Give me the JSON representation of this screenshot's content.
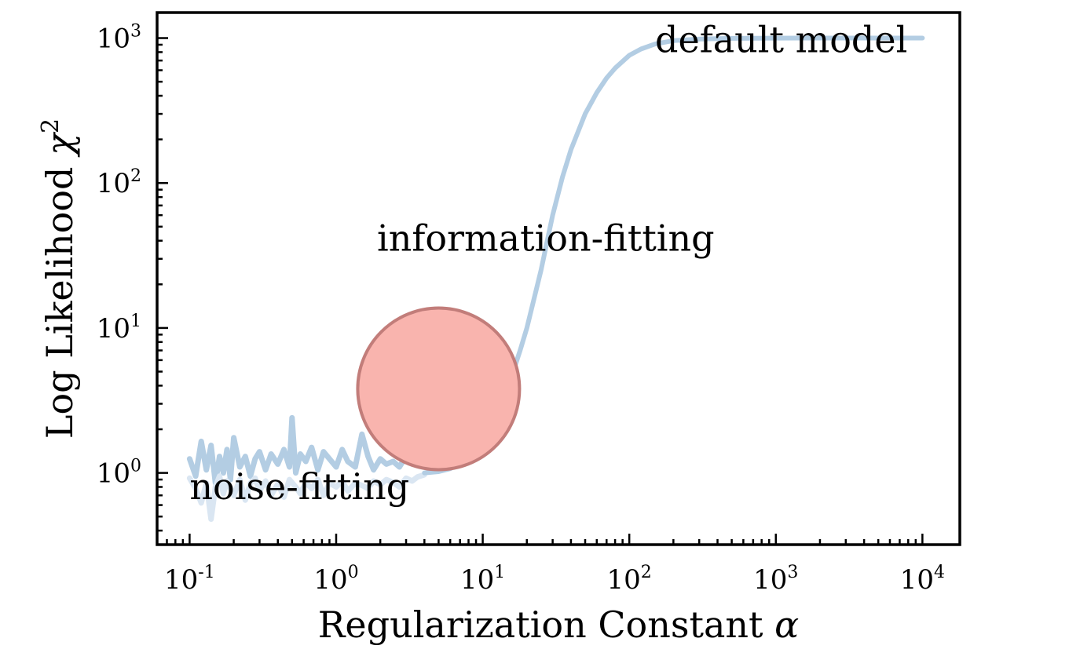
{
  "chart_data": {
    "type": "line",
    "title": "",
    "xlabel": "Regularization Constant",
    "xlabel_symbol": "α",
    "ylabel": "Log Likelihood",
    "ylabel_symbol": "χ",
    "ylabel_symbol_exp": "2",
    "xscale": "log",
    "yscale": "log",
    "xlim": [
      0.06,
      18000
    ],
    "ylim": [
      0.32,
      1500
    ],
    "grid": false,
    "legend": "none",
    "x_ticks": [
      {
        "base": "10",
        "exp": "-1",
        "value": 0.1
      },
      {
        "base": "10",
        "exp": "0",
        "value": 1
      },
      {
        "base": "10",
        "exp": "1",
        "value": 10
      },
      {
        "base": "10",
        "exp": "2",
        "value": 100
      },
      {
        "base": "10",
        "exp": "3",
        "value": 1000
      },
      {
        "base": "10",
        "exp": "4",
        "value": 10000
      }
    ],
    "y_ticks": [
      {
        "base": "10",
        "exp": "0",
        "value": 1
      },
      {
        "base": "10",
        "exp": "1",
        "value": 10
      },
      {
        "base": "10",
        "exp": "2",
        "value": 100
      },
      {
        "base": "10",
        "exp": "3",
        "value": 1000
      }
    ],
    "series": [
      {
        "color": "#b3cde3",
        "style": "noisy",
        "x": [
          0.1,
          0.11,
          0.12,
          0.13,
          0.14,
          0.15,
          0.16,
          0.17,
          0.18,
          0.19,
          0.2,
          0.22,
          0.24,
          0.26,
          0.28,
          0.3,
          0.33,
          0.36,
          0.4,
          0.44,
          0.48,
          0.5,
          0.53,
          0.57,
          0.62,
          0.68,
          0.75,
          0.82,
          0.9,
          1.0,
          1.1,
          1.2,
          1.35,
          1.5,
          1.65,
          1.8,
          2.0,
          2.2,
          2.45,
          2.7,
          3.0,
          3.3,
          3.6,
          4.0
        ],
        "y": [
          1.25,
          0.95,
          1.65,
          1.05,
          1.55,
          0.85,
          1.3,
          1.0,
          1.45,
          0.9,
          1.75,
          1.1,
          1.3,
          0.95,
          1.25,
          1.4,
          1.05,
          1.35,
          1.15,
          1.45,
          1.1,
          2.4,
          1.0,
          1.35,
          1.2,
          1.5,
          1.05,
          1.4,
          1.25,
          1.1,
          1.45,
          1.2,
          1.1,
          1.85,
          1.3,
          1.05,
          1.25,
          1.15,
          1.2,
          1.1,
          1.3,
          1.15,
          1.25,
          1.15
        ]
      },
      {
        "color": "#dae6f2",
        "style": "noisy",
        "x": [
          0.1,
          0.11,
          0.12,
          0.13,
          0.14,
          0.15,
          0.16,
          0.17,
          0.18,
          0.2,
          0.22,
          0.24,
          0.26,
          0.28,
          0.3,
          0.33,
          0.36,
          0.4,
          0.44,
          0.48,
          0.53,
          0.57,
          0.62,
          0.68,
          0.75,
          0.82,
          0.9,
          1.0,
          1.1,
          1.2,
          1.35,
          1.5,
          1.65,
          1.8,
          2.0,
          2.2,
          2.45,
          2.7,
          3.0,
          3.3,
          3.6,
          4.0
        ],
        "y": [
          0.92,
          0.78,
          0.62,
          0.85,
          0.48,
          0.8,
          0.95,
          0.72,
          0.88,
          0.7,
          0.9,
          0.65,
          0.85,
          0.92,
          0.75,
          0.88,
          0.7,
          0.84,
          0.68,
          0.9,
          0.8,
          0.72,
          0.86,
          0.78,
          0.9,
          0.7,
          0.85,
          0.8,
          0.88,
          0.75,
          0.85,
          0.82,
          0.78,
          0.88,
          0.83,
          0.9,
          0.86,
          0.8,
          0.92,
          0.88,
          0.94,
          0.97
        ]
      },
      {
        "color": "#b3cde3",
        "style": "smooth",
        "x": [
          4.0,
          5.0,
          6.0,
          7.0,
          8.0,
          10.0,
          12.0,
          15.0,
          18.0,
          20.0,
          25.0,
          30.0,
          35.0,
          40.0,
          50.0,
          60.0,
          70.0,
          80.0,
          100.0,
          120.0,
          150.0,
          200.0,
          300.0,
          500.0,
          1000.0,
          2000.0,
          5000.0,
          10000.0
        ],
        "y": [
          1.0,
          1.02,
          1.07,
          1.15,
          1.28,
          1.7,
          2.4,
          4.0,
          7.0,
          10.0,
          25.0,
          60.0,
          110.0,
          170.0,
          300.0,
          420.0,
          530.0,
          620.0,
          760.0,
          840.0,
          910.0,
          960.0,
          985.0,
          995.0,
          999.0,
          1000.0,
          1000.0,
          1000.0
        ]
      }
    ],
    "annotations": [
      {
        "text": "default model",
        "x": 150,
        "y": 800
      },
      {
        "text": "information-fitting",
        "x": 1.9,
        "y": 34
      },
      {
        "text": "noise-fitting",
        "x": 0.1,
        "y": 0.66
      }
    ],
    "highlight_circle": {
      "cx": 5.0,
      "cy": 3.8,
      "fill": "#f9b4ae",
      "stroke": "#c27d7a"
    }
  }
}
